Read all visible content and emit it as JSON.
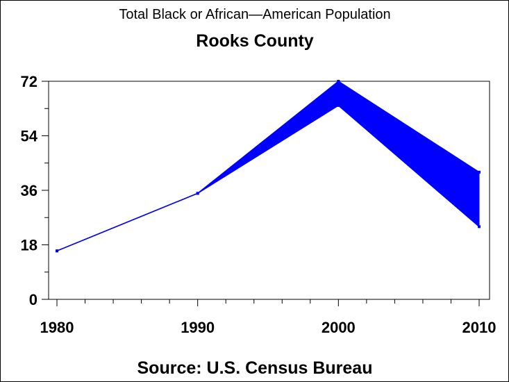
{
  "chart_data": {
    "type": "area",
    "title": "Total Black or African—American Population",
    "subtitle": "Rooks County",
    "source": "Source: U.S. Census Bureau",
    "x": [
      1980,
      1990,
      2000,
      2010
    ],
    "x_tick_labels": [
      "1980",
      "1990",
      "2000",
      "2010"
    ],
    "y_tick_labels": [
      "0",
      "18",
      "36",
      "54",
      "72"
    ],
    "ylim": [
      0,
      72
    ],
    "xlim": [
      1980,
      2010
    ],
    "grid": false,
    "series": [
      {
        "values": [
          16,
          35,
          72,
          42
        ]
      },
      {
        "values": [
          16,
          35,
          64,
          24
        ]
      }
    ],
    "colors": {
      "line": "#0000ff",
      "fill": "#0000ff",
      "axis": "#000000"
    }
  }
}
